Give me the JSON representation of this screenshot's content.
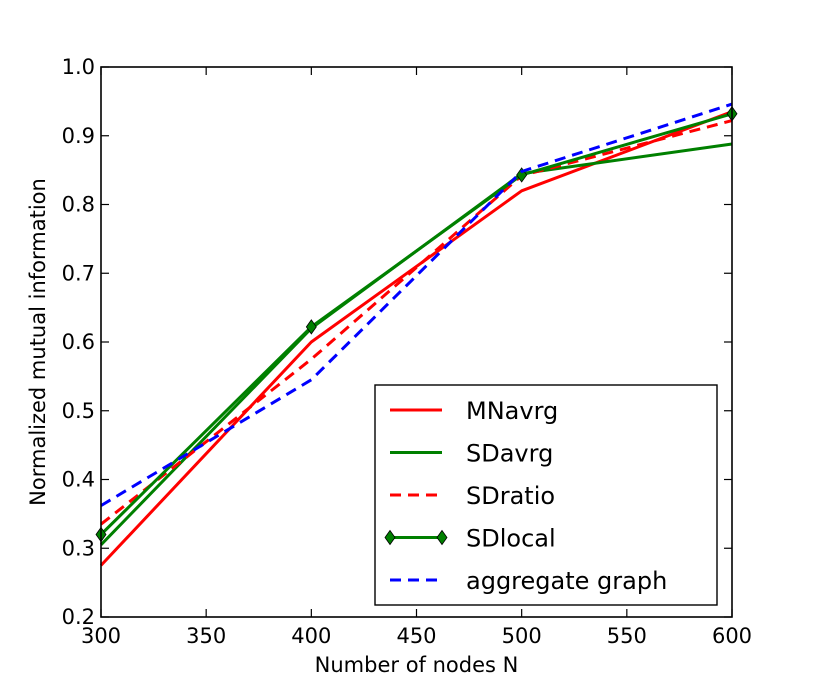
{
  "chart_data": {
    "type": "line",
    "title": "",
    "xlabel": "Number of nodes N",
    "ylabel": "Normalized mutual information",
    "xlim": [
      300,
      600
    ],
    "ylim": [
      0.2,
      1.0
    ],
    "x_ticks": [
      "300",
      "350",
      "400",
      "450",
      "500",
      "550",
      "600"
    ],
    "y_ticks": [
      "0.2",
      "0.3",
      "0.4",
      "0.5",
      "0.6",
      "0.7",
      "0.8",
      "0.9",
      "1.0"
    ],
    "grid": false,
    "legend_position": "bottom-right",
    "series": [
      {
        "name": "MNavrg",
        "color": "#ff0000",
        "dash": "solid",
        "marker": "none",
        "x": [
          300,
          400,
          500,
          600
        ],
        "y": [
          0.275,
          0.6,
          0.82,
          0.935
        ]
      },
      {
        "name": "SDavrg",
        "color": "#008000",
        "dash": "solid",
        "marker": "none",
        "x": [
          300,
          400,
          500,
          600
        ],
        "y": [
          0.305,
          0.62,
          0.845,
          0.888
        ]
      },
      {
        "name": "SDratio",
        "color": "#ff0000",
        "dash": "dashed",
        "marker": "none",
        "x": [
          300,
          400,
          500,
          600
        ],
        "y": [
          0.335,
          0.575,
          0.842,
          0.922
        ]
      },
      {
        "name": "SDlocal",
        "color": "#008000",
        "dash": "solid",
        "marker": "diamond",
        "x": [
          300,
          400,
          500,
          600
        ],
        "y": [
          0.32,
          0.622,
          0.843,
          0.932
        ]
      },
      {
        "name": "aggregate graph",
        "color": "#0000ff",
        "dash": "dashed",
        "marker": "none",
        "x": [
          300,
          400,
          500,
          600
        ],
        "y": [
          0.362,
          0.545,
          0.848,
          0.946
        ]
      }
    ]
  }
}
